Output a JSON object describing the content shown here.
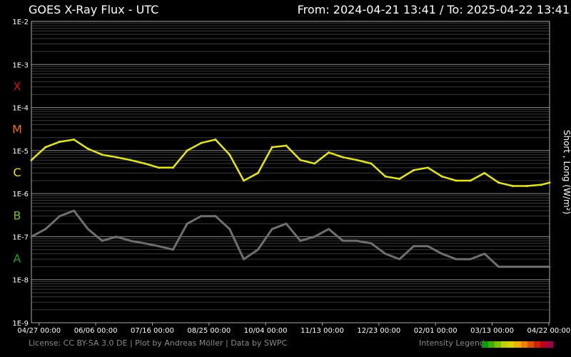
{
  "header": {
    "title": "GOES X-Ray Flux - UTC",
    "range": "From: 2024-04-21 13:41  /  To: 2025-04-22 13:41"
  },
  "footer": {
    "credits": "License: CC BY-SA 3.0 DE | Plot by Andreas Möller | Data by SWPC",
    "legend_label": "Intensity Legend",
    "legend_colors": [
      "#00a000",
      "#40b000",
      "#80c000",
      "#c0d000",
      "#e0d000",
      "#f0b000",
      "#f08000",
      "#e05000",
      "#d02000",
      "#c00020",
      "#a00050"
    ]
  },
  "chart_data": {
    "type": "line",
    "title": "GOES X-Ray Flux - UTC",
    "ylabel": "Short , Long (W/m²)",
    "yscale": "log",
    "ylim": [
      1e-09,
      0.01
    ],
    "y_ticks": [
      "1E-2",
      "1E-3",
      "1E-4",
      "1E-5",
      "1E-6",
      "1E-7",
      "1E-8",
      "1E-9"
    ],
    "x_ticks": [
      "04/27 00:00",
      "06/06 00:00",
      "07/16 00:00",
      "08/25 00:00",
      "10/04 00:00",
      "11/13 00:00",
      "12/23 00:00",
      "02/01 00:00",
      "03/13 00:00",
      "04/22 00:00"
    ],
    "x_tick_days": [
      5.43,
      45.43,
      85.43,
      125.43,
      165.43,
      205.43,
      245.43,
      285.43,
      325.43,
      365.43
    ],
    "x_total_days": 366,
    "classes": [
      {
        "label": "X",
        "color": "#d01010"
      },
      {
        "label": "M",
        "color": "#f07010"
      },
      {
        "label": "C",
        "color": "#e8e800"
      },
      {
        "label": "B",
        "color": "#70c020"
      },
      {
        "label": "A",
        "color": "#20a020"
      }
    ],
    "series": [
      {
        "name": "Long",
        "color": "#e8e800",
        "x_days": [
          0,
          10,
          20,
          30,
          40,
          50,
          60,
          70,
          80,
          90,
          100,
          110,
          120,
          130,
          140,
          150,
          160,
          170,
          180,
          190,
          200,
          210,
          220,
          230,
          240,
          250,
          260,
          270,
          280,
          290,
          300,
          310,
          320,
          330,
          340,
          350,
          360,
          366
        ],
        "values": [
          6e-06,
          1.2e-05,
          1.6e-05,
          1.8e-05,
          1.1e-05,
          8e-06,
          7e-06,
          6e-06,
          5e-06,
          4e-06,
          4e-06,
          1e-05,
          1.5e-05,
          1.8e-05,
          8e-06,
          2e-06,
          3e-06,
          1.2e-05,
          1.3e-05,
          6e-06,
          5e-06,
          9e-06,
          7e-06,
          6e-06,
          5e-06,
          2.5e-06,
          2.2e-06,
          3.5e-06,
          4e-06,
          2.5e-06,
          2e-06,
          2e-06,
          3e-06,
          1.8e-06,
          1.5e-06,
          1.5e-06,
          1.6e-06,
          1.8e-06
        ]
      },
      {
        "name": "Short",
        "color": "#6f6f6f",
        "x_days": [
          0,
          10,
          20,
          30,
          40,
          50,
          60,
          70,
          80,
          90,
          100,
          110,
          120,
          130,
          140,
          150,
          160,
          170,
          180,
          190,
          200,
          210,
          220,
          230,
          240,
          250,
          260,
          270,
          280,
          290,
          300,
          310,
          320,
          330,
          340,
          350,
          360,
          366
        ],
        "values": [
          1e-07,
          1.5e-07,
          3e-07,
          4e-07,
          1.5e-07,
          8e-08,
          1e-07,
          8e-08,
          7e-08,
          6e-08,
          5e-08,
          2e-07,
          3e-07,
          3e-07,
          1.5e-07,
          3e-08,
          5e-08,
          1.5e-07,
          2e-07,
          8e-08,
          1e-07,
          1.5e-07,
          8e-08,
          8e-08,
          7e-08,
          4e-08,
          3e-08,
          6e-08,
          6e-08,
          4e-08,
          3e-08,
          3e-08,
          4e-08,
          2e-08,
          2e-08,
          2e-08,
          2e-08,
          2e-08
        ]
      }
    ]
  }
}
